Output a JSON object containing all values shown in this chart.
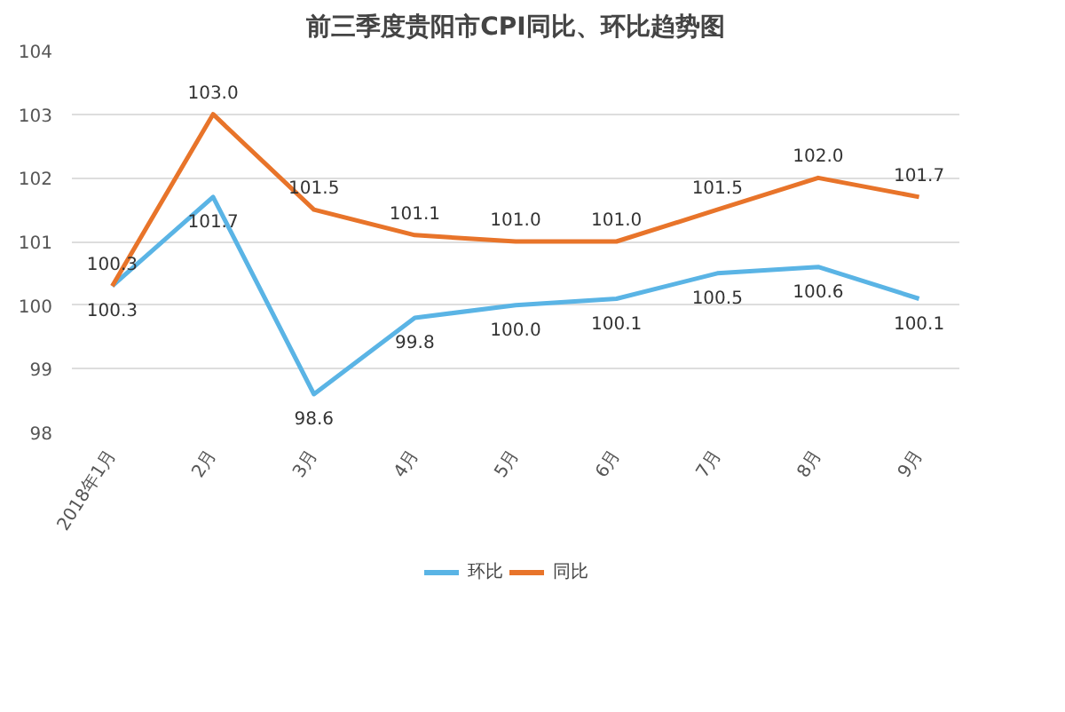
{
  "chart_data": {
    "type": "line",
    "title": "前三季度贵阳市CPI同比、环比趋势图",
    "categories": [
      "2018年1月",
      "2月",
      "3月",
      "4月",
      "5月",
      "6月",
      "7月",
      "8月",
      "9月"
    ],
    "series": [
      {
        "name": "环比",
        "color": "#5ab4e5",
        "values": [
          100.3,
          101.7,
          98.6,
          99.8,
          100.0,
          100.1,
          100.5,
          100.6,
          100.1
        ],
        "value_labels": [
          "100.3",
          "101.7",
          "98.6",
          "99.8",
          "100.0",
          "100.1",
          "100.5",
          "100.6",
          "100.1"
        ]
      },
      {
        "name": "同比",
        "color": "#e8742a",
        "values": [
          100.3,
          103.0,
          101.5,
          101.1,
          101.0,
          101.0,
          101.5,
          102.0,
          101.7
        ],
        "value_labels": [
          "100.3",
          "103.0",
          "101.5",
          "101.1",
          "101.0",
          "101.0",
          "101.5",
          "102.0",
          "101.7"
        ]
      }
    ],
    "ylim": [
      98,
      104
    ],
    "yticks": [
      98,
      99,
      100,
      101,
      102,
      103,
      104
    ],
    "grid": "y",
    "legend": "bottom",
    "line_style": "solid"
  }
}
